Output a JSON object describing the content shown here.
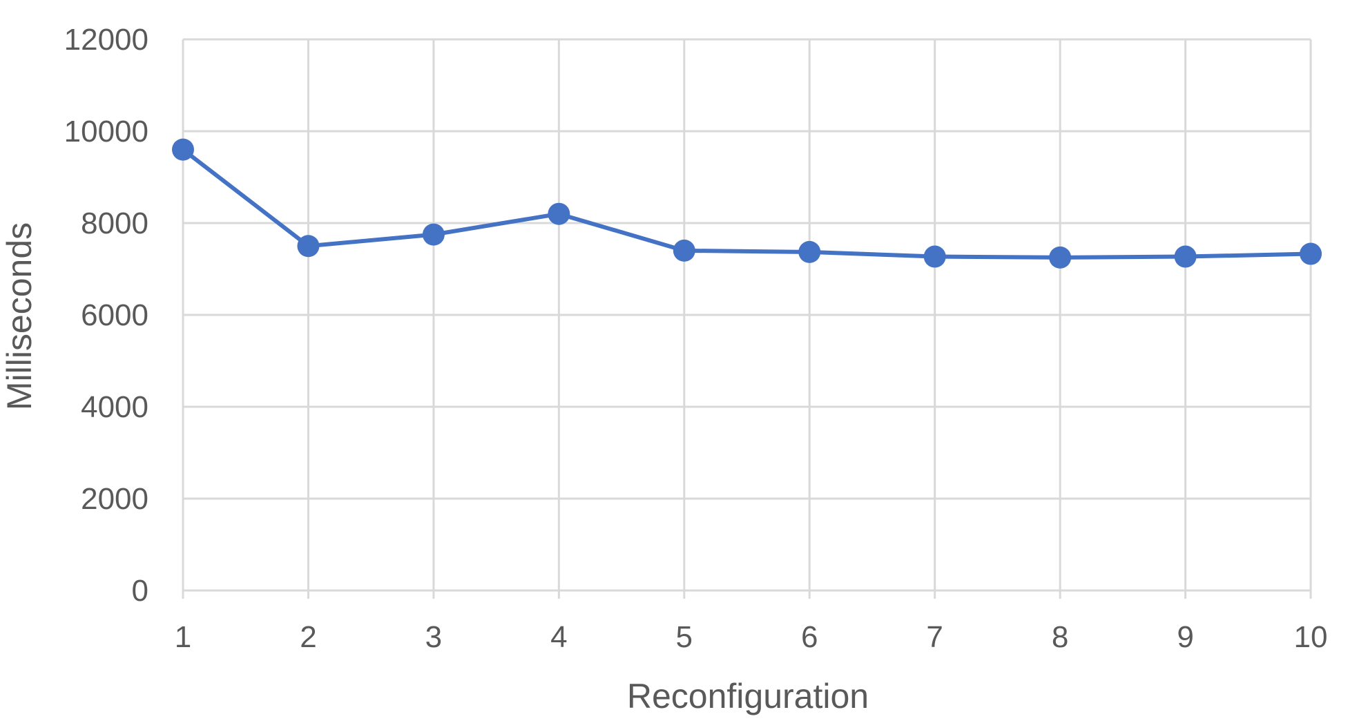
{
  "chart_data": {
    "type": "line",
    "xlabel": "Reconfiguration",
    "ylabel": "Milliseconds",
    "categories": [
      "1",
      "2",
      "3",
      "4",
      "5",
      "6",
      "7",
      "8",
      "9",
      "10"
    ],
    "yticks": [
      "0",
      "2000",
      "4000",
      "6000",
      "8000",
      "10000",
      "12000"
    ],
    "ylim": [
      0,
      12000
    ],
    "grid": true,
    "legend": "none",
    "series": [
      {
        "color": "#4472c4",
        "values": [
          9600,
          7500,
          7750,
          8200,
          7400,
          7370,
          7270,
          7250,
          7270,
          7330
        ]
      }
    ]
  }
}
